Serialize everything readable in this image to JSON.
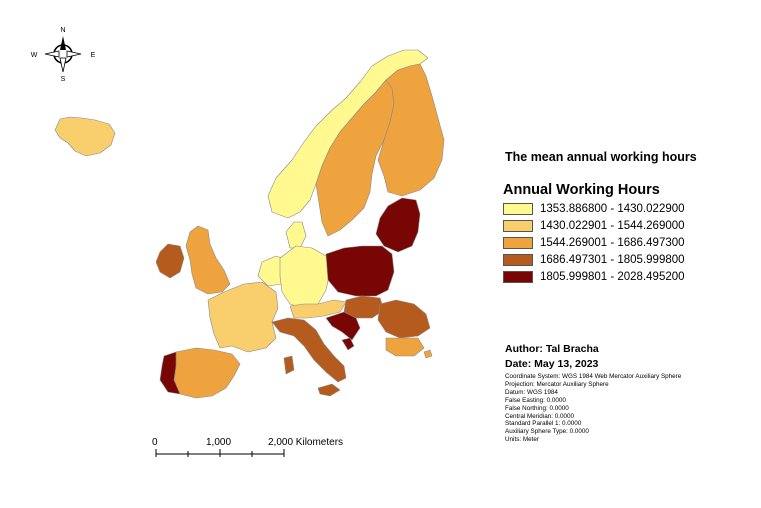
{
  "map": {
    "title": "The mean annual working hours",
    "north_arrow": {
      "icon": "north-arrow-icon",
      "n": "N",
      "s": "S",
      "e": "E",
      "w": "W"
    },
    "legend": {
      "title": "Annual Working Hours",
      "classes": [
        {
          "label": "1353.886800 - 1430.022900",
          "color": "#fff98f"
        },
        {
          "label": "1430.022901 - 1544.269000",
          "color": "#f9cf6e"
        },
        {
          "label": "1544.269001 - 1686.497300",
          "color": "#efa33e"
        },
        {
          "label": "1686.497301 - 1805.999800",
          "color": "#b65b1e"
        },
        {
          "label": "1805.999801 - 2028.495200",
          "color": "#780605"
        }
      ]
    },
    "author": "Author: Tal Bracha",
    "date": "Date: May 13, 2023",
    "metadata": [
      "Coordinate System: WGS 1984 Web Mercator Auxiliary Sphere",
      "Projection: Mercator Auxiliary Sphere",
      "Datum: WGS 1984",
      "False Easting: 0.0000",
      "False Northing: 0.0000",
      "Central Meridian: 0.0000",
      "Standard Parallel 1: 0.0000",
      "Auxiliary Sphere Type: 0.0000",
      "Units: Meter"
    ],
    "scale_bar": {
      "labels": [
        "0",
        "1,000",
        "2,000 Kilometers"
      ]
    }
  }
}
